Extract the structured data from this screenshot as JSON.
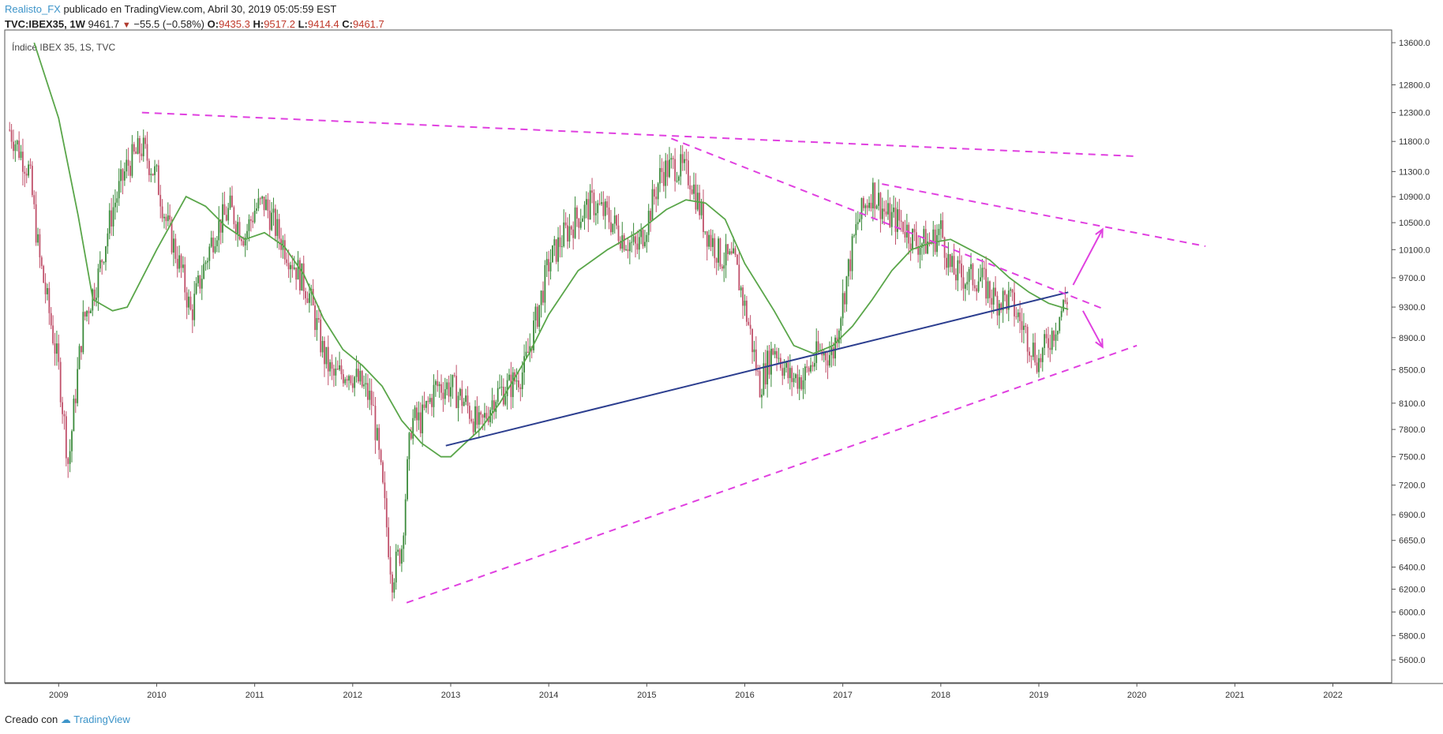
{
  "header": {
    "author": "Realisto_FX",
    "published_text": "publicado en TradingView.com, Abril 30, 2019 05:05:59 EST"
  },
  "ohlc": {
    "symbol": "TVC:IBEX35, 1W",
    "last": "9461.7",
    "change": "−55.5 (−0.58%)",
    "o_label": "O:",
    "o_value": "9435.3",
    "h_label": "H:",
    "h_value": "9517.2",
    "l_label": "L:",
    "l_value": "9414.4",
    "c_label": "C:",
    "c_value": "9461.7"
  },
  "footer": {
    "created_with": "Creado con",
    "brand": "TradingView"
  },
  "colors": {
    "candle_up": "#3a8a3a",
    "candle_down": "#c0506a",
    "ma_line": "#5aa64a",
    "trend_line": "#2c3e8f",
    "dashed": "#e040e0",
    "grid_axis": "#555555"
  },
  "chart_data": {
    "type": "line",
    "title": "Índice IBEX 35, 1S, TVC",
    "xlabel": "",
    "ylabel": "",
    "x_ticks": [
      "2009",
      "2010",
      "2011",
      "2012",
      "2013",
      "2014",
      "2015",
      "2016",
      "2017",
      "2018",
      "2019",
      "2020",
      "2021",
      "2022"
    ],
    "y_ticks": [
      13600,
      12800,
      12300,
      11800,
      11300,
      10900,
      10500,
      10100,
      9700,
      9300,
      8900,
      8500,
      8100,
      7800,
      7500,
      7200,
      6900,
      6650,
      6400,
      6200,
      6000,
      5800,
      5600
    ],
    "y_scale": "log",
    "xlim": [
      2008.45,
      2022.6
    ],
    "ylim": [
      5420,
      13850
    ],
    "grid": false,
    "series": [
      {
        "style": "candlestick-approx",
        "x": [
          2008.5,
          2008.7,
          2008.8,
          2009.0,
          2009.1,
          2009.25,
          2009.4,
          2009.55,
          2009.7,
          2009.85,
          2010.0,
          2010.1,
          2010.25,
          2010.35,
          2010.45,
          2010.6,
          2010.75,
          2010.9,
          2011.0,
          2011.1,
          2011.25,
          2011.4,
          2011.55,
          2011.7,
          2011.8,
          2011.95,
          2012.1,
          2012.2,
          2012.3,
          2012.4,
          2012.5,
          2012.6,
          2012.7,
          2012.85,
          2013.0,
          2013.15,
          2013.3,
          2013.45,
          2013.6,
          2013.75,
          2013.9,
          2014.0,
          2014.15,
          2014.3,
          2014.45,
          2014.6,
          2014.75,
          2014.9,
          2015.0,
          2015.15,
          2015.3,
          2015.45,
          2015.6,
          2015.75,
          2015.9,
          2016.05,
          2016.15,
          2016.3,
          2016.45,
          2016.6,
          2016.75,
          2016.9,
          2017.0,
          2017.15,
          2017.3,
          2017.45,
          2017.6,
          2017.75,
          2017.9,
          2018.0,
          2018.1,
          2018.25,
          2018.4,
          2018.55,
          2018.7,
          2018.85,
          2019.0,
          2019.15,
          2019.3
        ],
        "y": [
          12000,
          11300,
          10000,
          8500,
          7400,
          9100,
          9700,
          10700,
          11400,
          11700,
          11200,
          10500,
          9800,
          9200,
          9700,
          10400,
          10700,
          10300,
          10700,
          10800,
          10300,
          9900,
          9500,
          8700,
          8400,
          8500,
          8300,
          8100,
          7200,
          6300,
          6600,
          7900,
          7900,
          8300,
          8300,
          8100,
          7800,
          8200,
          8300,
          8500,
          9300,
          9900,
          10300,
          10600,
          10800,
          10600,
          10300,
          10100,
          10500,
          11300,
          11400,
          11200,
          10400,
          10000,
          9900,
          9000,
          8300,
          8800,
          8400,
          8400,
          8700,
          8700,
          9400,
          10500,
          11000,
          10600,
          10500,
          10200,
          10200,
          10400,
          9800,
          9700,
          9700,
          9400,
          9400,
          9000,
          8600,
          9000,
          9460
        ]
      },
      {
        "name": "",
        "style": "moving-average",
        "x": [
          2008.75,
          2009.0,
          2009.2,
          2009.35,
          2009.55,
          2009.7,
          2010.0,
          2010.3,
          2010.5,
          2010.7,
          2010.9,
          2011.1,
          2011.3,
          2011.5,
          2011.7,
          2011.9,
          2012.1,
          2012.3,
          2012.5,
          2012.7,
          2012.9,
          2013.0,
          2013.15,
          2013.3,
          2013.5,
          2013.8,
          2014.0,
          2014.3,
          2014.6,
          2014.9,
          2015.2,
          2015.4,
          2015.6,
          2015.8,
          2016.0,
          2016.3,
          2016.5,
          2016.7,
          2016.9,
          2017.1,
          2017.3,
          2017.5,
          2017.7,
          2017.9,
          2018.1,
          2018.3,
          2018.5,
          2018.7,
          2018.9,
          2019.1,
          2019.3
        ],
        "y": [
          13600,
          12200,
          10600,
          9400,
          9250,
          9300,
          10100,
          10900,
          10750,
          10450,
          10250,
          10350,
          10150,
          9750,
          9150,
          8750,
          8550,
          8300,
          7900,
          7650,
          7500,
          7500,
          7650,
          7800,
          8100,
          8700,
          9200,
          9800,
          10100,
          10350,
          10700,
          10850,
          10800,
          10550,
          9900,
          9250,
          8800,
          8700,
          8800,
          9050,
          9400,
          9800,
          10100,
          10200,
          10250,
          10100,
          9950,
          9700,
          9500,
          9350,
          9270
        ]
      }
    ],
    "annotations": {
      "blue_trendline": {
        "x": [
          2012.95,
          2019.3
        ],
        "y": [
          7620,
          9500
        ]
      },
      "dashed_lines": [
        {
          "x": [
            2009.85,
            2020.0
          ],
          "y": [
            12300,
            11550
          ]
        },
        {
          "x": [
            2015.25,
            2019.65
          ],
          "y": [
            11850,
            9280
          ]
        },
        {
          "x": [
            2017.4,
            2020.7
          ],
          "y": [
            11100,
            10150
          ]
        },
        {
          "x": [
            2012.55,
            2020.0
          ],
          "y": [
            6080,
            8800
          ]
        }
      ],
      "arrows": [
        {
          "x": [
            2019.35,
            2019.65
          ],
          "y": [
            9600,
            10400
          ]
        },
        {
          "x": [
            2019.45,
            2019.65
          ],
          "y": [
            9250,
            8780
          ]
        }
      ]
    }
  }
}
